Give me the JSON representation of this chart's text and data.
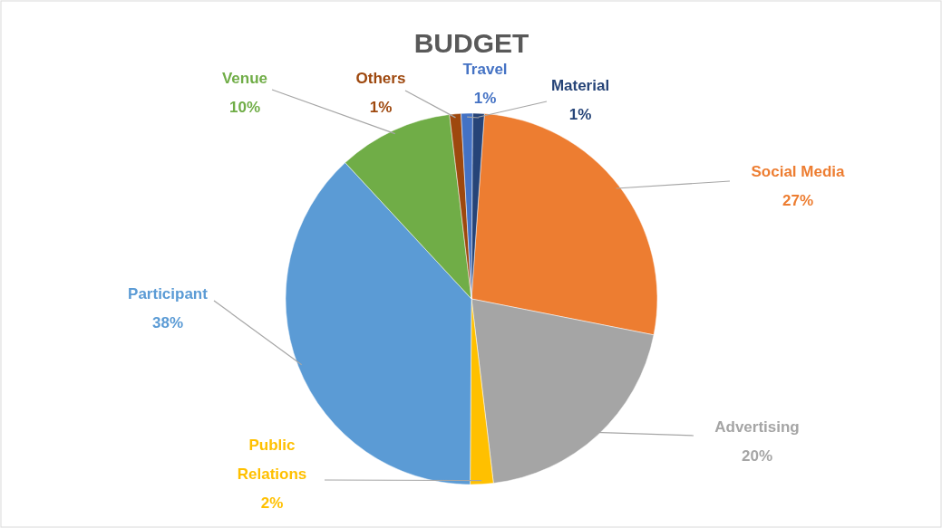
{
  "chart_data": {
    "type": "pie",
    "title": "BUDGET",
    "categories": [
      "Social Media",
      "Advertising",
      "Public Relations",
      "Participant",
      "Venue",
      "Others",
      "Travel",
      "Material"
    ],
    "values": [
      27,
      20,
      2,
      38,
      10,
      1,
      1,
      1
    ],
    "value_labels": [
      "27%",
      "20%",
      "2%",
      "38%",
      "10%",
      "1%",
      "1%",
      "1%"
    ],
    "colors": [
      "#ed7d31",
      "#a5a5a5",
      "#ffc000",
      "#5b9bd5",
      "#70ad47",
      "#9e480e",
      "#4472c4",
      "#264478"
    ]
  }
}
